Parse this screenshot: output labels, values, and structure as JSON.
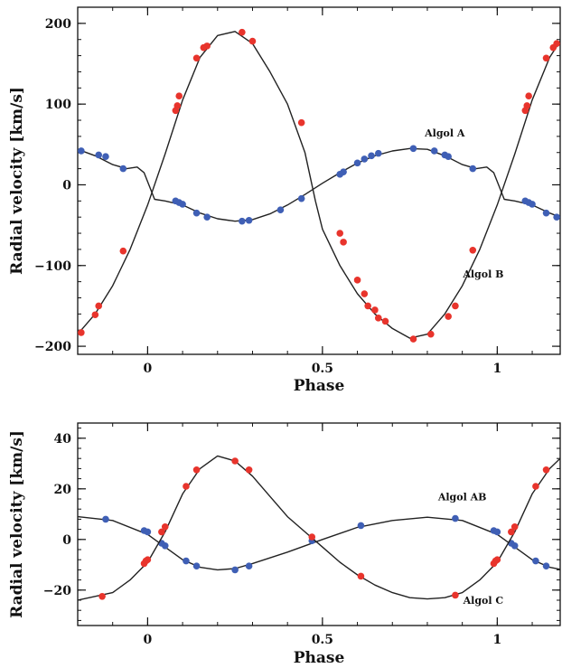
{
  "chart_data": [
    {
      "type": "line",
      "xlabel": "Phase",
      "ylabel": "Radial velocity [km/s]",
      "xlim": [
        -0.2,
        1.18
      ],
      "ylim": [
        -210,
        220
      ],
      "xticks": [
        {
          "value": 0,
          "label": "0"
        },
        {
          "value": 0.5,
          "label": "0.5"
        },
        {
          "value": 1,
          "label": "1"
        }
      ],
      "yticks": [
        {
          "value": -200,
          "label": "−200"
        },
        {
          "value": -100,
          "label": "−100"
        },
        {
          "value": 0,
          "label": "0"
        },
        {
          "value": 100,
          "label": "100"
        },
        {
          "value": 200,
          "label": "200"
        }
      ],
      "grid": false,
      "series": [
        {
          "name": "Algol A",
          "label_at": {
            "x": 0.85,
            "y": 60
          },
          "point_color": "#3f5fb5",
          "curve": [
            [
              -0.2,
              44
            ],
            [
              -0.15,
              36
            ],
            [
              -0.1,
              25
            ],
            [
              -0.06,
              20
            ],
            [
              -0.03,
              22
            ],
            [
              -0.01,
              15
            ],
            [
              0.02,
              -18
            ],
            [
              0.05,
              -20
            ],
            [
              0.1,
              -25
            ],
            [
              0.15,
              -35
            ],
            [
              0.2,
              -42
            ],
            [
              0.25,
              -45
            ],
            [
              0.3,
              -43
            ],
            [
              0.35,
              -36
            ],
            [
              0.4,
              -25
            ],
            [
              0.45,
              -12
            ],
            [
              0.5,
              2
            ],
            [
              0.55,
              15
            ],
            [
              0.6,
              27
            ],
            [
              0.65,
              36
            ],
            [
              0.7,
              42
            ],
            [
              0.75,
              45
            ],
            [
              0.8,
              44
            ],
            [
              0.85,
              36
            ],
            [
              0.9,
              25
            ],
            [
              0.94,
              20
            ],
            [
              0.97,
              22
            ],
            [
              0.99,
              15
            ],
            [
              1.02,
              -18
            ],
            [
              1.05,
              -20
            ],
            [
              1.1,
              -25
            ],
            [
              1.15,
              -35
            ],
            [
              1.18,
              -40
            ]
          ],
          "points": [
            [
              -0.19,
              42
            ],
            [
              -0.14,
              37
            ],
            [
              -0.12,
              35
            ],
            [
              -0.07,
              20
            ],
            [
              0.08,
              -20
            ],
            [
              0.09,
              -22
            ],
            [
              0.1,
              -24
            ],
            [
              0.14,
              -35
            ],
            [
              0.17,
              -40
            ],
            [
              0.27,
              -45
            ],
            [
              0.29,
              -44
            ],
            [
              0.38,
              -31
            ],
            [
              0.44,
              -17
            ],
            [
              0.55,
              13
            ],
            [
              0.56,
              16
            ],
            [
              0.6,
              27
            ],
            [
              0.62,
              32
            ],
            [
              0.64,
              36
            ],
            [
              0.66,
              39
            ],
            [
              0.76,
              45
            ],
            [
              0.82,
              42
            ],
            [
              0.85,
              37
            ],
            [
              0.86,
              35
            ],
            [
              0.93,
              20
            ],
            [
              1.08,
              -20
            ],
            [
              1.09,
              -22
            ],
            [
              1.1,
              -24
            ],
            [
              1.14,
              -35
            ],
            [
              1.17,
              -40
            ]
          ]
        },
        {
          "name": "Algol B",
          "label_at": {
            "x": 0.96,
            "y": -115
          },
          "point_color": "#e8342c",
          "curve": [
            [
              -0.2,
              -185
            ],
            [
              -0.15,
              -160
            ],
            [
              -0.1,
              -125
            ],
            [
              -0.05,
              -80
            ],
            [
              0.0,
              -25
            ],
            [
              0.05,
              38
            ],
            [
              0.1,
              105
            ],
            [
              0.15,
              158
            ],
            [
              0.2,
              185
            ],
            [
              0.25,
              190
            ],
            [
              0.3,
              175
            ],
            [
              0.35,
              140
            ],
            [
              0.4,
              100
            ],
            [
              0.45,
              40
            ],
            [
              0.48,
              -20
            ],
            [
              0.5,
              -55
            ],
            [
              0.55,
              -100
            ],
            [
              0.6,
              -135
            ],
            [
              0.65,
              -160
            ],
            [
              0.7,
              -178
            ],
            [
              0.75,
              -190
            ],
            [
              0.8,
              -185
            ],
            [
              0.85,
              -160
            ],
            [
              0.9,
              -125
            ],
            [
              0.95,
              -80
            ],
            [
              1.0,
              -25
            ],
            [
              1.05,
              38
            ],
            [
              1.1,
              105
            ],
            [
              1.15,
              158
            ],
            [
              1.18,
              178
            ]
          ],
          "points": [
            [
              -0.19,
              -183
            ],
            [
              -0.15,
              -161
            ],
            [
              -0.14,
              -150
            ],
            [
              -0.07,
              -82
            ],
            [
              0.08,
              92
            ],
            [
              0.085,
              98
            ],
            [
              0.09,
              110
            ],
            [
              0.14,
              157
            ],
            [
              0.16,
              170
            ],
            [
              0.17,
              172
            ],
            [
              0.27,
              189
            ],
            [
              0.3,
              178
            ],
            [
              0.44,
              77
            ],
            [
              0.55,
              -60
            ],
            [
              0.56,
              -71
            ],
            [
              0.6,
              -118
            ],
            [
              0.62,
              -135
            ],
            [
              0.63,
              -150
            ],
            [
              0.65,
              -155
            ],
            [
              0.66,
              -165
            ],
            [
              0.68,
              -169
            ],
            [
              0.76,
              -191
            ],
            [
              0.81,
              -185
            ],
            [
              0.86,
              -163
            ],
            [
              0.88,
              -150
            ],
            [
              0.93,
              -81
            ],
            [
              1.08,
              92
            ],
            [
              1.085,
              98
            ],
            [
              1.09,
              110
            ],
            [
              1.14,
              157
            ],
            [
              1.16,
              170
            ],
            [
              1.17,
              175
            ]
          ]
        }
      ]
    },
    {
      "type": "line",
      "xlabel": "Phase",
      "ylabel": "Radial velocity [km/s]",
      "xlim": [
        -0.2,
        1.18
      ],
      "ylim": [
        -34,
        46
      ],
      "xticks": [
        {
          "value": 0,
          "label": "0"
        },
        {
          "value": 0.5,
          "label": "0.5"
        },
        {
          "value": 1,
          "label": "1"
        }
      ],
      "yticks": [
        {
          "value": -20,
          "label": "−20"
        },
        {
          "value": 0,
          "label": "0"
        },
        {
          "value": 20,
          "label": "20"
        },
        {
          "value": 40,
          "label": "40"
        }
      ],
      "grid": false,
      "series": [
        {
          "name": "Algol AB",
          "label_at": {
            "x": 0.9,
            "y": 15.5
          },
          "point_color": "#3f5fb5",
          "curve": [
            [
              -0.2,
              9
            ],
            [
              -0.1,
              7.5
            ],
            [
              0.0,
              2
            ],
            [
              0.05,
              -3
            ],
            [
              0.1,
              -8
            ],
            [
              0.15,
              -11
            ],
            [
              0.2,
              -12
            ],
            [
              0.25,
              -11.5
            ],
            [
              0.3,
              -9.5
            ],
            [
              0.4,
              -5
            ],
            [
              0.5,
              0
            ],
            [
              0.6,
              4.8
            ],
            [
              0.7,
              7.5
            ],
            [
              0.8,
              8.8
            ],
            [
              0.9,
              7.5
            ],
            [
              1.0,
              2
            ],
            [
              1.05,
              -3
            ],
            [
              1.1,
              -8
            ],
            [
              1.15,
              -11
            ],
            [
              1.18,
              -11.8
            ]
          ],
          "points": [
            [
              -0.12,
              8
            ],
            [
              -0.01,
              3.5
            ],
            [
              0.0,
              3
            ],
            [
              0.04,
              -1.5
            ],
            [
              0.05,
              -2.5
            ],
            [
              0.11,
              -8.5
            ],
            [
              0.14,
              -10.5
            ],
            [
              0.25,
              -12
            ],
            [
              0.29,
              -10.5
            ],
            [
              0.47,
              -0.5
            ],
            [
              0.61,
              5.5
            ],
            [
              0.88,
              8.3
            ],
            [
              0.99,
              3.5
            ],
            [
              1.0,
              3
            ],
            [
              1.04,
              -1.5
            ],
            [
              1.05,
              -2.5
            ],
            [
              1.11,
              -8.5
            ],
            [
              1.14,
              -10.5
            ]
          ]
        },
        {
          "name": "Algol C",
          "label_at": {
            "x": 0.96,
            "y": -25.5
          },
          "point_color": "#e8342c",
          "curve": [
            [
              -0.2,
              -24
            ],
            [
              -0.1,
              -21
            ],
            [
              -0.05,
              -16
            ],
            [
              0.0,
              -9
            ],
            [
              0.05,
              3
            ],
            [
              0.1,
              18
            ],
            [
              0.15,
              28
            ],
            [
              0.2,
              33
            ],
            [
              0.25,
              31
            ],
            [
              0.3,
              25
            ],
            [
              0.35,
              17
            ],
            [
              0.4,
              9
            ],
            [
              0.45,
              3
            ],
            [
              0.5,
              -3
            ],
            [
              0.55,
              -9
            ],
            [
              0.6,
              -14
            ],
            [
              0.65,
              -18
            ],
            [
              0.7,
              -21
            ],
            [
              0.75,
              -23
            ],
            [
              0.8,
              -23.5
            ],
            [
              0.85,
              -23
            ],
            [
              0.9,
              -21
            ],
            [
              0.95,
              -16
            ],
            [
              1.0,
              -9
            ],
            [
              1.05,
              3
            ],
            [
              1.1,
              18
            ],
            [
              1.15,
              28
            ],
            [
              1.18,
              32
            ]
          ],
          "points": [
            [
              -0.13,
              -22.5
            ],
            [
              -0.01,
              -9.5
            ],
            [
              -0.005,
              -8.5
            ],
            [
              0.0,
              -8
            ],
            [
              0.04,
              3
            ],
            [
              0.05,
              5
            ],
            [
              0.11,
              21
            ],
            [
              0.14,
              27.5
            ],
            [
              0.25,
              31
            ],
            [
              0.29,
              27.5
            ],
            [
              0.47,
              1
            ],
            [
              0.61,
              -14.5
            ],
            [
              0.88,
              -22
            ],
            [
              0.99,
              -9.5
            ],
            [
              0.995,
              -8.5
            ],
            [
              1.0,
              -8
            ],
            [
              1.04,
              3
            ],
            [
              1.05,
              5
            ],
            [
              1.11,
              21
            ],
            [
              1.14,
              27.5
            ]
          ]
        }
      ]
    }
  ]
}
